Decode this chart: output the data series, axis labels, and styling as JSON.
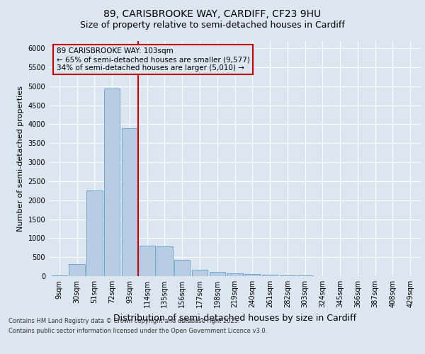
{
  "title_line1": "89, CARISBROOKE WAY, CARDIFF, CF23 9HU",
  "title_line2": "Size of property relative to semi-detached houses in Cardiff",
  "xlabel": "Distribution of semi-detached houses by size in Cardiff",
  "ylabel": "Number of semi-detached properties",
  "categories": [
    "9sqm",
    "30sqm",
    "51sqm",
    "72sqm",
    "93sqm",
    "114sqm",
    "135sqm",
    "156sqm",
    "177sqm",
    "198sqm",
    "219sqm",
    "240sqm",
    "261sqm",
    "282sqm",
    "303sqm",
    "324sqm",
    "345sqm",
    "366sqm",
    "387sqm",
    "408sqm",
    "429sqm"
  ],
  "values": [
    20,
    310,
    2250,
    4950,
    3900,
    800,
    780,
    430,
    160,
    120,
    80,
    55,
    30,
    15,
    10,
    5,
    4,
    3,
    1,
    1,
    0
  ],
  "bar_color": "#b8cce4",
  "bar_edge_color": "#6fa8d5",
  "vline_color": "#cc0000",
  "vline_x_index": 4.5,
  "annotation_text": "89 CARISBROOKE WAY: 103sqm\n← 65% of semi-detached houses are smaller (9,577)\n34% of semi-detached houses are larger (5,010) →",
  "ylim": [
    0,
    6200
  ],
  "yticks": [
    0,
    500,
    1000,
    1500,
    2000,
    2500,
    3000,
    3500,
    4000,
    4500,
    5000,
    5500,
    6000
  ],
  "background_color": "#dce6f1",
  "grid_color": "#ffffff",
  "footer_line1": "Contains HM Land Registry data © Crown copyright and database right 2025.",
  "footer_line2": "Contains public sector information licensed under the Open Government Licence v3.0.",
  "title_fontsize": 10,
  "subtitle_fontsize": 9,
  "tick_fontsize": 7,
  "ylabel_fontsize": 8,
  "xlabel_fontsize": 9,
  "annotation_fontsize": 7.5
}
